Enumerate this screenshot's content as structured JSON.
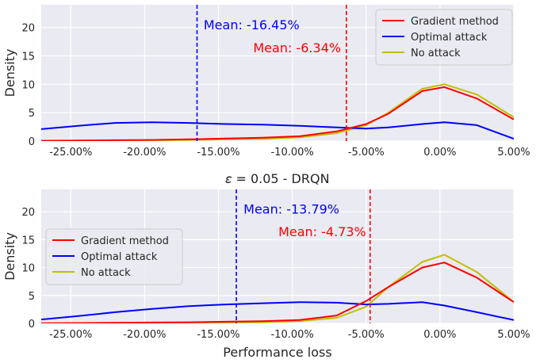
{
  "chart_data": [
    {
      "type": "line",
      "title": "",
      "xlabel": "",
      "ylabel": "Density",
      "xlim": [
        -27.0,
        5.0
      ],
      "ylim": [
        0,
        24
      ],
      "x_ticks": [
        -25,
        -20,
        -15,
        -10,
        -5,
        0,
        5
      ],
      "x_tick_labels": [
        "-25.00%",
        "-20.00%",
        "-15.00%",
        "-10.00%",
        "-5.00%",
        "0.00%",
        "5.00%"
      ],
      "y_ticks": [
        0,
        5,
        10,
        15,
        20
      ],
      "y_tick_labels": [
        "0",
        "5",
        "10",
        "15",
        "20"
      ],
      "grid": true,
      "legend_position": "upper right",
      "series": [
        {
          "name": "Gradient method",
          "color": "#ff0000",
          "x": [
            -27,
            -24.5,
            -22,
            -19.5,
            -17,
            -14.5,
            -12,
            -9.5,
            -7,
            -5,
            -3.5,
            -1.2,
            0.3,
            2.5,
            5
          ],
          "y": [
            0.05,
            0.1,
            0.15,
            0.2,
            0.3,
            0.45,
            0.6,
            0.85,
            1.7,
            3.0,
            4.8,
            8.8,
            9.5,
            7.5,
            3.8
          ]
        },
        {
          "name": "Optimal attack",
          "color": "#0000ff",
          "x": [
            -27,
            -24.5,
            -22,
            -19.5,
            -17,
            -14.5,
            -12,
            -9.5,
            -7,
            -5,
            -3.5,
            -1.2,
            0.3,
            2.5,
            5
          ],
          "y": [
            2.1,
            2.7,
            3.2,
            3.3,
            3.2,
            3.0,
            2.9,
            2.7,
            2.4,
            2.2,
            2.4,
            3.0,
            3.3,
            2.8,
            0.4
          ]
        },
        {
          "name": "No attack",
          "color": "#bfbf00",
          "x": [
            -27,
            -24.5,
            -22,
            -19.5,
            -17,
            -14.5,
            -12,
            -9.5,
            -7,
            -5,
            -3.5,
            -1.2,
            0.3,
            2.5,
            5
          ],
          "y": [
            0.03,
            0.05,
            0.1,
            0.15,
            0.2,
            0.3,
            0.4,
            0.65,
            1.4,
            2.8,
            5.0,
            9.2,
            10.0,
            8.2,
            4.2
          ]
        }
      ],
      "vlines": [
        {
          "x": -16.45,
          "color": "#0000ff"
        },
        {
          "x": -6.34,
          "color": "#ff0000"
        }
      ],
      "annotations": [
        {
          "text": "Mean: -16.45%",
          "x": -16.0,
          "y": 20.5,
          "color": "#0000ff"
        },
        {
          "text": "Mean: -6.34%",
          "x": -6.7,
          "y": 16.5,
          "color": "#ff0000",
          "align": "end"
        }
      ]
    },
    {
      "type": "line",
      "title": "𝜀 = 0.05 - DRQN",
      "xlabel": "Performance loss",
      "ylabel": "Density",
      "xlim": [
        -27.0,
        5.0
      ],
      "ylim": [
        0,
        24
      ],
      "x_ticks": [
        -25,
        -20,
        -15,
        -10,
        -5,
        0,
        5
      ],
      "x_tick_labels": [
        "-25.00%",
        "-20.00%",
        "-15.00%",
        "-10.00%",
        "-5.00%",
        "0.00%",
        "5.00%"
      ],
      "y_ticks": [
        0,
        5,
        10,
        15,
        20
      ],
      "y_tick_labels": [
        "0",
        "5",
        "10",
        "15",
        "20"
      ],
      "grid": true,
      "legend_position": "center left",
      "series": [
        {
          "name": "Gradient method",
          "color": "#ff0000",
          "x": [
            -27,
            -24.5,
            -22,
            -19.5,
            -17,
            -14.5,
            -12,
            -9.5,
            -7,
            -5,
            -3.5,
            -1.2,
            0.3,
            2.5,
            5
          ],
          "y": [
            0.02,
            0.05,
            0.1,
            0.15,
            0.2,
            0.3,
            0.4,
            0.6,
            1.4,
            4.0,
            6.5,
            10.0,
            10.9,
            8.2,
            3.8
          ]
        },
        {
          "name": "Optimal attack",
          "color": "#0000ff",
          "x": [
            -27,
            -24.5,
            -22,
            -19.5,
            -17,
            -14.5,
            -12,
            -9.5,
            -7,
            -5,
            -3.5,
            -1.2,
            0.3,
            2.5,
            5
          ],
          "y": [
            0.7,
            1.3,
            2.0,
            2.6,
            3.1,
            3.4,
            3.6,
            3.8,
            3.7,
            3.4,
            3.5,
            3.8,
            3.2,
            2.0,
            0.6
          ]
        },
        {
          "name": "No attack",
          "color": "#bfbf00",
          "x": [
            -27,
            -24.5,
            -22,
            -19.5,
            -17,
            -14.5,
            -12,
            -9.5,
            -7,
            -5,
            -3.5,
            -1.2,
            0.3,
            2.5,
            5
          ],
          "y": [
            0.01,
            0.02,
            0.05,
            0.08,
            0.1,
            0.15,
            0.2,
            0.4,
            1.0,
            3.0,
            6.5,
            11.0,
            12.3,
            9.2,
            3.8
          ]
        }
      ],
      "vlines": [
        {
          "x": -13.79,
          "color": "#0000ff"
        },
        {
          "x": -4.73,
          "color": "#ff0000"
        }
      ],
      "annotations": [
        {
          "text": "Mean: -13.79%",
          "x": -13.3,
          "y": 20.5,
          "color": "#0000ff"
        },
        {
          "text": "Mean: -4.73%",
          "x": -5.0,
          "y": 16.5,
          "color": "#ff0000",
          "align": "end"
        }
      ]
    }
  ]
}
